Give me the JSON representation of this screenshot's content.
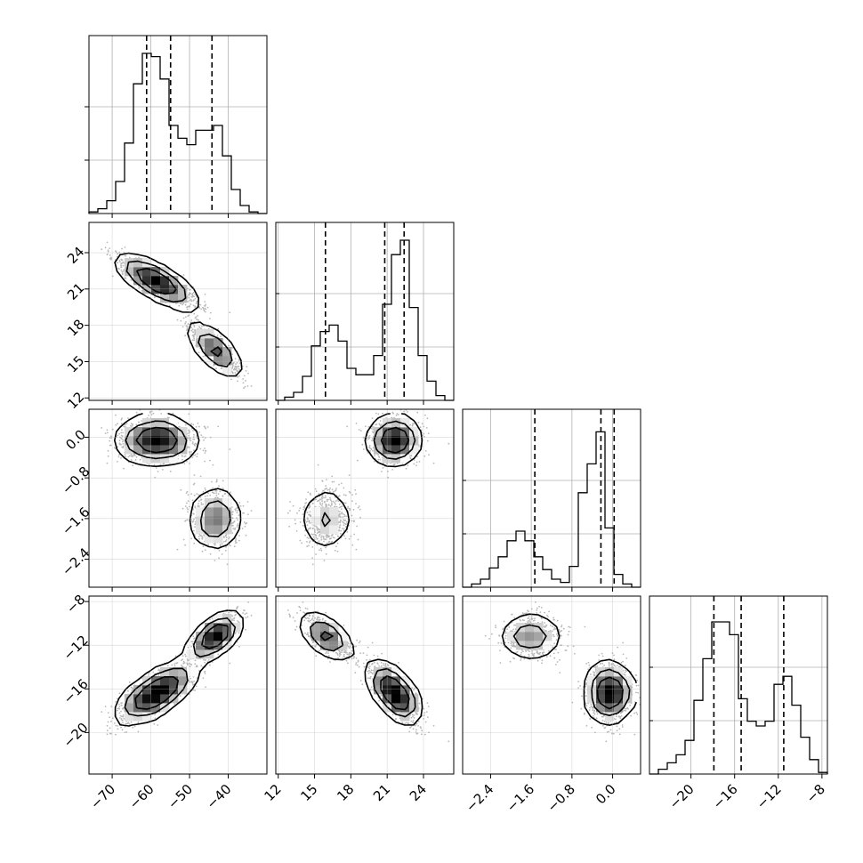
{
  "chart_data": {
    "type": "corner",
    "parameters": [
      {
        "id": "p0",
        "range": [
          -76,
          -30
        ],
        "ticks": [
          -70,
          -60,
          -50,
          -40
        ],
        "tick_labels": [
          "−70",
          "−60",
          "−50",
          "−40"
        ],
        "quantiles": [
          -61.1,
          -54.9,
          -44.2
        ]
      },
      {
        "id": "p1",
        "range": [
          11.8,
          26.5
        ],
        "ticks": [
          12,
          15,
          18,
          21,
          24
        ],
        "tick_labels": [
          "12",
          "15",
          "18",
          "21",
          "24"
        ],
        "quantiles": [
          15.9,
          20.8,
          22.4
        ]
      },
      {
        "id": "p2",
        "range": [
          -2.95,
          0.55
        ],
        "ticks": [
          -2.4,
          -1.6,
          -0.8,
          0.0
        ],
        "tick_labels": [
          "−2.4",
          "−1.6",
          "−0.8",
          "0.0"
        ],
        "quantiles": [
          -1.53,
          -0.23,
          0.03
        ]
      },
      {
        "id": "p3",
        "range": [
          -23.8,
          -7.5
        ],
        "ticks": [
          -20,
          -16,
          -12,
          -8
        ],
        "tick_labels": [
          "−20",
          "−16",
          "−12",
          "−8"
        ],
        "quantiles": [
          -17.9,
          -15.4,
          -11.5
        ]
      }
    ],
    "modes": [
      {
        "weight": 0.65,
        "mean": [
          -58.5,
          21.6,
          -0.05,
          -16.4
        ],
        "sd": [
          5.0,
          1.0,
          0.22,
          1.3
        ]
      },
      {
        "weight": 0.35,
        "mean": [
          -43.5,
          16.0,
          -1.6,
          -11.2
        ],
        "sd": [
          3.3,
          1.0,
          0.3,
          1.0
        ]
      }
    ],
    "correlations": {
      "p0_p1": -0.85,
      "p0_p3": 0.75,
      "p1_p3": -0.7,
      "p0_p2": 0.0,
      "p1_p2": 0.0,
      "p2_p3": 0.0
    },
    "histograms": [
      {
        "bins": 20,
        "counts": [
          0.01,
          0.03,
          0.08,
          0.2,
          0.44,
          0.81,
          1.0,
          0.98,
          0.84,
          0.55,
          0.47,
          0.43,
          0.52,
          0.52,
          0.55,
          0.36,
          0.15,
          0.05,
          0.01,
          0.0
        ]
      },
      {
        "bins": 20,
        "counts": [
          0.0,
          0.02,
          0.05,
          0.15,
          0.34,
          0.43,
          0.47,
          0.37,
          0.2,
          0.16,
          0.16,
          0.28,
          0.6,
          0.91,
          1.0,
          0.58,
          0.28,
          0.12,
          0.03,
          0.0
        ]
      },
      {
        "bins": 20,
        "counts": [
          0.0,
          0.02,
          0.05,
          0.12,
          0.19,
          0.29,
          0.35,
          0.29,
          0.19,
          0.11,
          0.05,
          0.03,
          0.13,
          0.59,
          0.77,
          0.97,
          0.37,
          0.08,
          0.02,
          0.0
        ]
      },
      {
        "bins": 20,
        "counts": [
          0.0,
          0.03,
          0.07,
          0.12,
          0.21,
          0.46,
          0.72,
          0.95,
          0.95,
          0.87,
          0.47,
          0.33,
          0.3,
          0.33,
          0.56,
          0.61,
          0.43,
          0.23,
          0.09,
          0.01
        ]
      }
    ],
    "quantile_lines": "dashed",
    "grid": true,
    "contour_levels": 3,
    "scatter": "light-grey points"
  }
}
